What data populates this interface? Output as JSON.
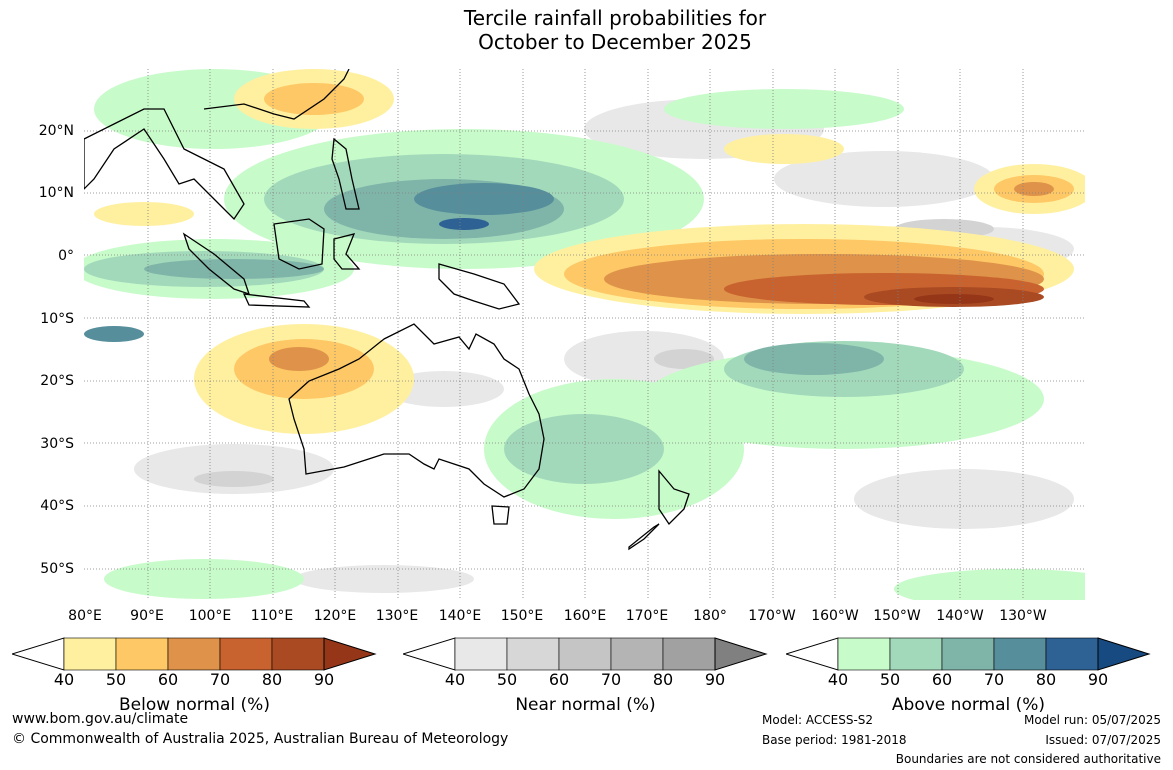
{
  "title": {
    "line1": "Tercile rainfall probabilities for",
    "line2": "October to December 2025"
  },
  "map": {
    "lat_labels": [
      "20°N",
      "10°N",
      "0°",
      "10°S",
      "20°S",
      "30°S",
      "40°S",
      "50°S"
    ],
    "lon_labels": [
      "80°E",
      "90°E",
      "100°E",
      "110°E",
      "120°E",
      "130°E",
      "140°E",
      "150°E",
      "160°E",
      "170°E",
      "180°",
      "170°W",
      "160°W",
      "150°W",
      "140°W",
      "130°W"
    ]
  },
  "colorbars": [
    {
      "caption": "Below normal (%)",
      "ticks": [
        "40",
        "50",
        "60",
        "70",
        "80",
        "90"
      ],
      "colors": [
        "#fff0a0",
        "#fdc865",
        "#df9249",
        "#c8622e",
        "#a94a23"
      ],
      "extend_color": "#963618"
    },
    {
      "caption": "Near normal (%)",
      "ticks": [
        "40",
        "50",
        "60",
        "70",
        "80",
        "90"
      ],
      "colors": [
        "#e8e8e8",
        "#d7d7d7",
        "#c5c5c5",
        "#b4b4b4",
        "#a1a1a1"
      ],
      "extend_color": "#808080"
    },
    {
      "caption": "Above normal (%)",
      "ticks": [
        "40",
        "50",
        "60",
        "70",
        "80",
        "90"
      ],
      "colors": [
        "#c8fbca",
        "#a3d9bb",
        "#7fb5a8",
        "#568e9b",
        "#2e6295"
      ],
      "extend_color": "#174a80"
    }
  ],
  "footer": {
    "website": "www.bom.gov.au/climate",
    "copyright": "© Commonwealth of Australia 2025, Australian Bureau of Meteorology",
    "model": "Model: ACCESS-S2",
    "base_period": "Base period: 1981-2018",
    "model_run": "Model run: 05/07/2025",
    "issued": "Issued: 07/07/2025",
    "boundaries": "Boundaries are not considered authoritative"
  }
}
